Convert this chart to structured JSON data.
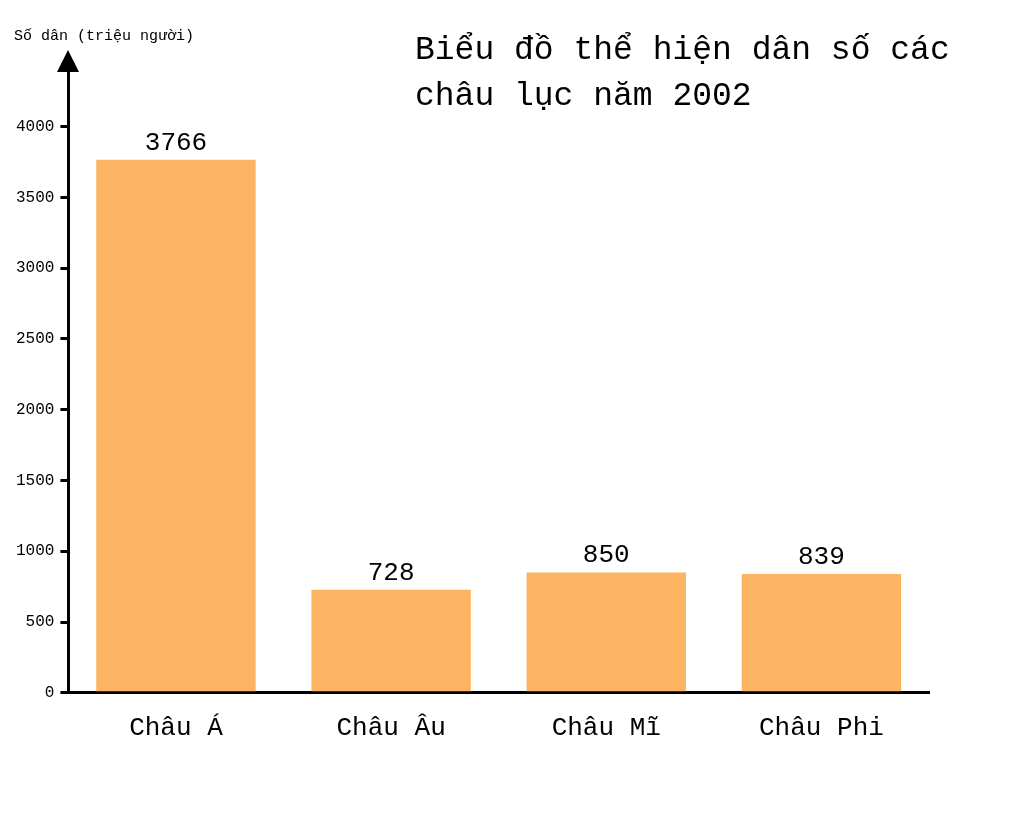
{
  "chart_data": {
    "type": "bar",
    "title": "Biểu đồ thể hiện dân số các châu lục năm 2002",
    "ylabel": "Số dân (triệu người)",
    "categories": [
      "Châu Á",
      "Châu Âu",
      "Châu Mĩ",
      "Châu Phi"
    ],
    "values": [
      3766,
      728,
      850,
      839
    ],
    "color": "#fdb462",
    "ylim": [
      0,
      4400
    ],
    "yticks": [
      0,
      500,
      1000,
      1500,
      2000,
      2500,
      3000,
      3500,
      4000
    ],
    "grid": false,
    "legend": false,
    "data_labels": true
  }
}
